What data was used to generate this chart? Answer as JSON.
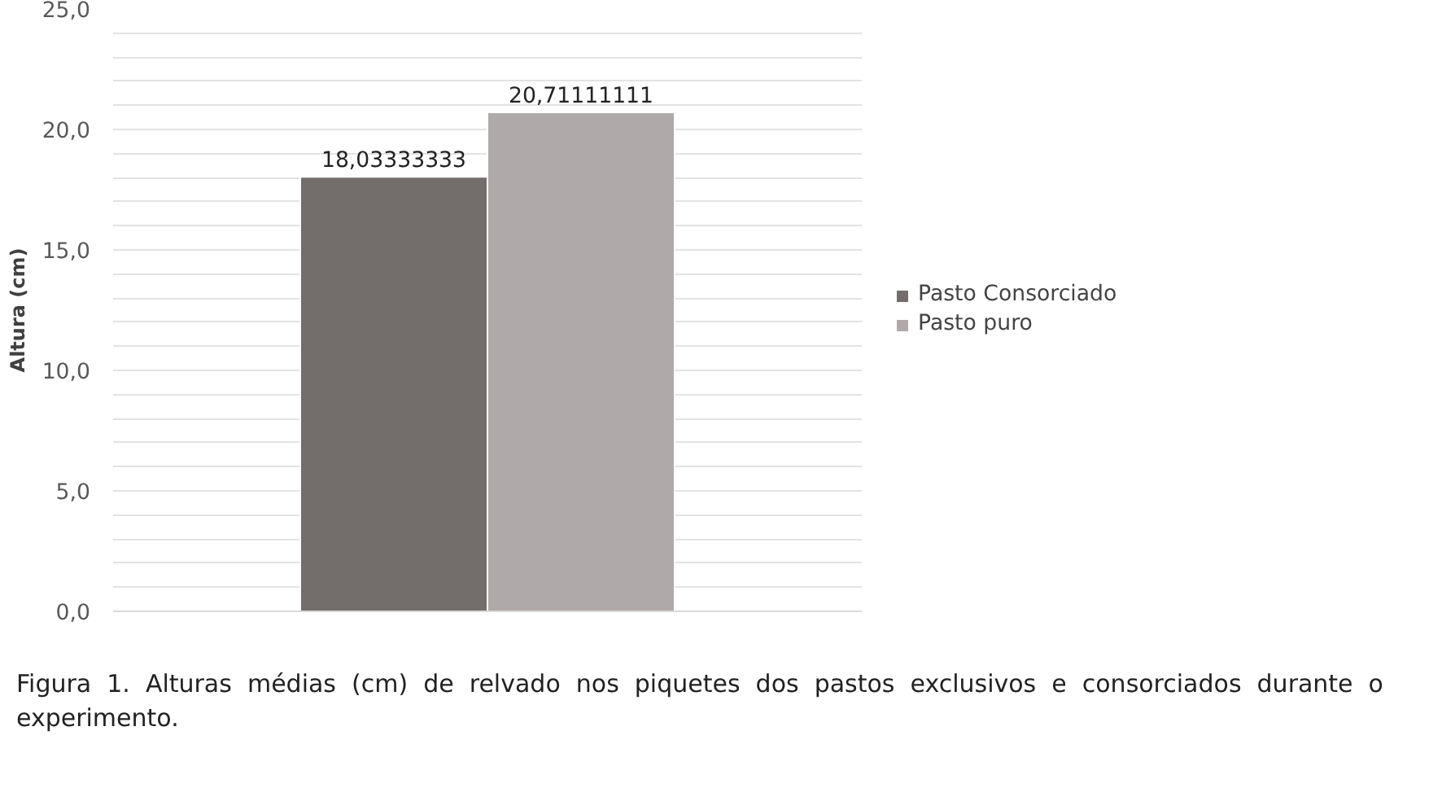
{
  "chart_data": {
    "type": "bar",
    "ylabel": "Altura (cm)",
    "categories": [
      null
    ],
    "series": [
      {
        "name": "Pasto Consorciado",
        "color": "#736e6c",
        "values": [
          18.03333333
        ],
        "value_labels": [
          "18,03333333"
        ]
      },
      {
        "name": "Pasto puro",
        "color": "#afaaa9",
        "values": [
          20.71111111
        ],
        "value_labels": [
          "20,71111111"
        ]
      }
    ],
    "ylim": [
      0,
      25
    ],
    "yticks": [
      {
        "value": 0,
        "label": "0,0"
      },
      {
        "value": 1,
        "label": null
      },
      {
        "value": 2,
        "label": null
      },
      {
        "value": 3,
        "label": null
      },
      {
        "value": 4,
        "label": null
      },
      {
        "value": 5,
        "label": "5,0"
      },
      {
        "value": 6,
        "label": null
      },
      {
        "value": 7,
        "label": null
      },
      {
        "value": 8,
        "label": null
      },
      {
        "value": 9,
        "label": null
      },
      {
        "value": 10,
        "label": "10,0"
      },
      {
        "value": 11,
        "label": null
      },
      {
        "value": 12,
        "label": null
      },
      {
        "value": 13,
        "label": null
      },
      {
        "value": 14,
        "label": null
      },
      {
        "value": 15,
        "label": "15,0"
      },
      {
        "value": 16,
        "label": null
      },
      {
        "value": 17,
        "label": null
      },
      {
        "value": 18,
        "label": null
      },
      {
        "value": 19,
        "label": null
      },
      {
        "value": 20,
        "label": "20,0"
      },
      {
        "value": 21,
        "label": null
      },
      {
        "value": 22,
        "label": null
      },
      {
        "value": 23,
        "label": null
      },
      {
        "value": 24,
        "label": null
      },
      {
        "value": 25,
        "label": "25,0"
      }
    ],
    "grid": "y",
    "legend": "right",
    "annotations": [
      "Figura 1. Alturas médias (cm) de relvado nos piquetes dos pastos exclusivos e consorciados durante o experimento."
    ]
  }
}
